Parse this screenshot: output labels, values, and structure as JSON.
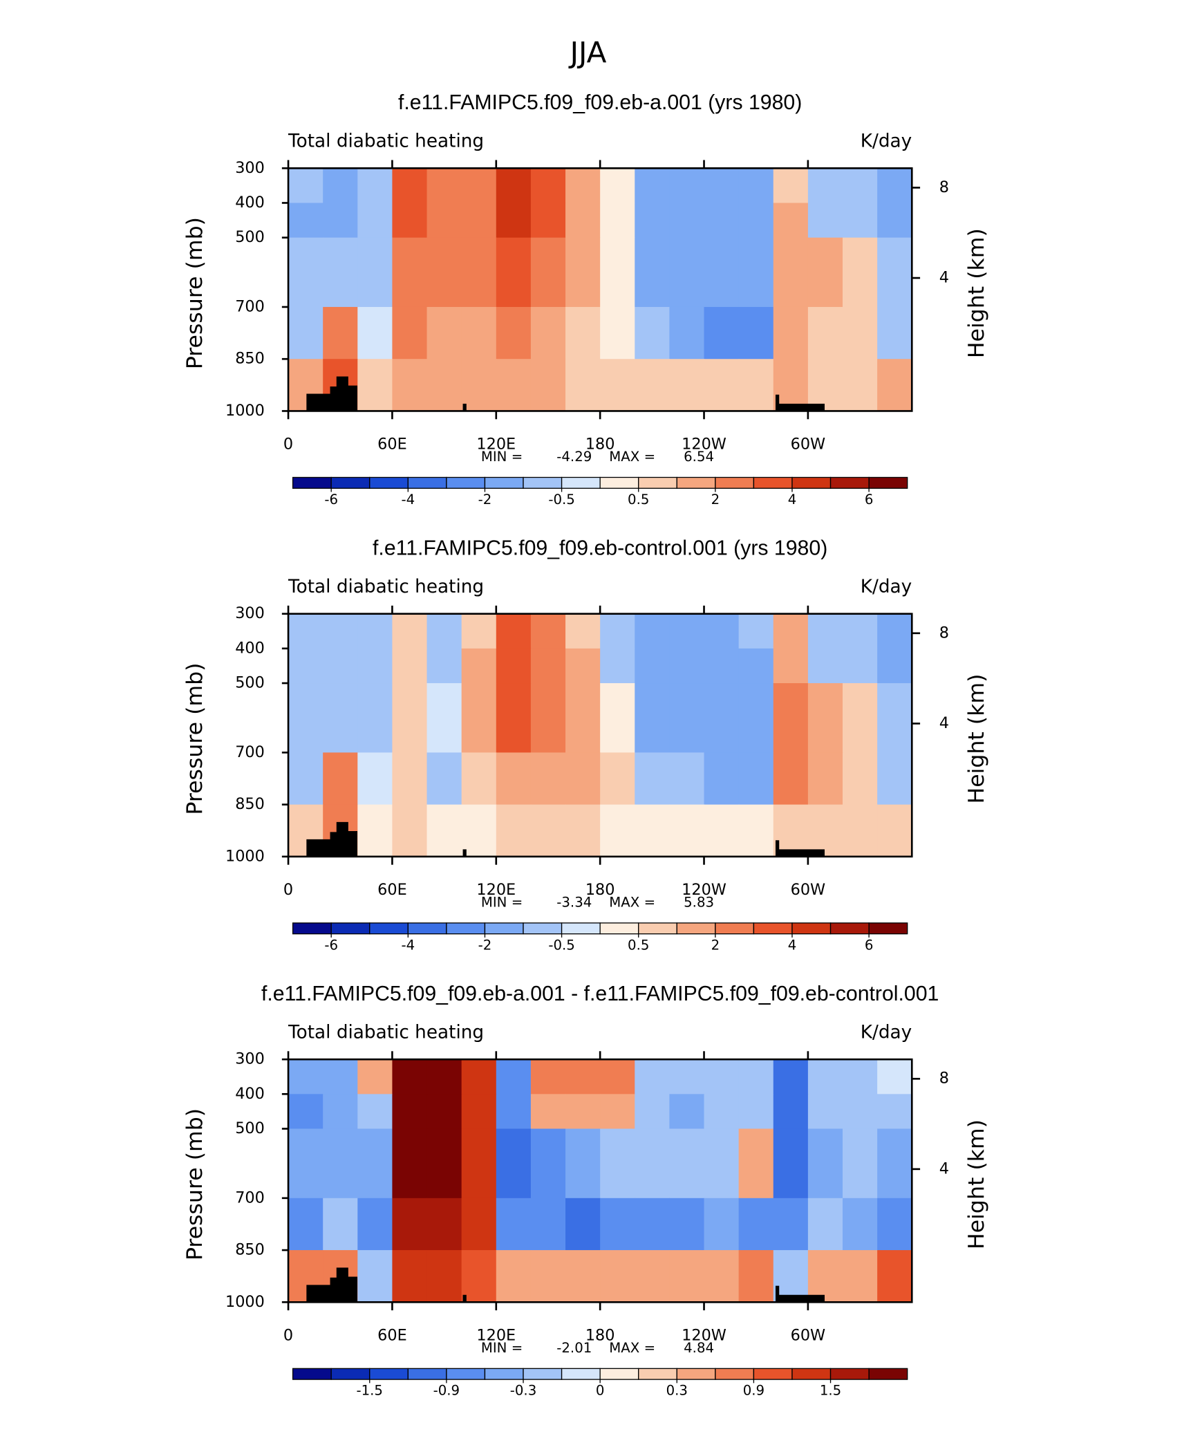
{
  "title": "JJA",
  "chart_data": [
    {
      "type": "heatmap",
      "title": "f.e11.FAMIPC5.f09_f09.eb-a.001 (yrs 1980)",
      "subtitle": "Total diabatic heating",
      "units": "K/day",
      "ylabel": "Pressure (mb)",
      "y2label": "Height (km)",
      "x_edges": [
        0,
        20,
        40,
        60,
        80,
        100,
        120,
        140,
        160,
        180,
        200,
        220,
        240,
        260,
        280,
        300,
        320,
        340,
        360
      ],
      "y_edges": [
        300,
        400,
        500,
        700,
        850,
        1000
      ],
      "values": [
        [
          -1,
          -1.5,
          -0.7,
          3,
          2.5,
          2,
          4,
          3,
          1,
          0.3,
          -1.5,
          -1.5,
          -1.5,
          -1.2,
          0.5,
          -0.7,
          -0.7,
          -1.5
        ],
        [
          -1.5,
          -1.5,
          -0.7,
          3.5,
          2.5,
          2.5,
          4.5,
          3,
          1,
          0.3,
          -1.5,
          -1.5,
          -1.5,
          -1.5,
          1,
          -0.7,
          -1,
          -1.5
        ],
        [
          -1,
          -1,
          -0.7,
          2.5,
          2,
          2,
          3,
          2,
          1,
          0.3,
          -1.5,
          -1.5,
          -1.5,
          -1.5,
          1.5,
          1,
          0.5,
          -1
        ],
        [
          -1,
          2,
          -0.5,
          2,
          1.5,
          1.5,
          2,
          1.5,
          0.7,
          0.3,
          -0.7,
          -2,
          -2.5,
          -2.5,
          1.5,
          0.7,
          0.7,
          -1
        ],
        [
          1,
          3,
          0.7,
          1,
          1,
          1,
          1,
          1,
          0.7,
          0.7,
          0.7,
          0.7,
          0.7,
          0.7,
          1,
          0.7,
          0.7,
          1.5
        ]
      ],
      "xlim": [
        0,
        360
      ],
      "ylim": [
        300,
        1000
      ],
      "y_inverted": true,
      "xticks": [
        0,
        {
          "value": 60,
          "label": "60E"
        },
        {
          "value": 120,
          "label": "120E"
        },
        180,
        {
          "value": 240,
          "label": "120W"
        },
        {
          "value": 300,
          "label": "60W"
        }
      ],
      "yticks": [
        300,
        400,
        500,
        700,
        850,
        1000
      ],
      "y2_scale": "standard-atmosphere",
      "y2ticks": [
        4,
        8
      ],
      "min_label": "MIN =",
      "min": -4.29,
      "max_label": "MAX =",
      "max": 6.54,
      "levels": [
        -6,
        -5,
        -4,
        -3,
        -2,
        -1,
        -0.5,
        0,
        0.5,
        1,
        2,
        3,
        4,
        5,
        6
      ],
      "colors": [
        "#050a8c",
        "#0b2bb4",
        "#1a4bd4",
        "#3a6fe4",
        "#5a8ef0",
        "#7ba9f4",
        "#a3c4f7",
        "#d5e6fb",
        "#fdeedf",
        "#f9cdb0",
        "#f5a67f",
        "#f07d52",
        "#e8542b",
        "#cf3512",
        "#a8190a",
        "#7a0403"
      ],
      "colorbar_ticks": [
        -6,
        -4,
        -2,
        -0.5,
        0.5,
        2,
        4,
        6
      ]
    },
    {
      "type": "heatmap",
      "title": "f.e11.FAMIPC5.f09_f09.eb-control.001 (yrs 1980)",
      "subtitle": "Total diabatic heating",
      "units": "K/day",
      "ylabel": "Pressure (mb)",
      "y2label": "Height (km)",
      "x_edges": [
        0,
        20,
        40,
        60,
        80,
        100,
        120,
        140,
        160,
        180,
        200,
        220,
        240,
        260,
        280,
        300,
        320,
        340,
        360
      ],
      "y_edges": [
        300,
        400,
        500,
        700,
        850,
        1000
      ],
      "values": [
        [
          -0.7,
          -1,
          -0.7,
          0.7,
          -0.7,
          0.7,
          3,
          2,
          0.7,
          -0.7,
          -1.5,
          -1.5,
          -1.5,
          -1,
          1.5,
          -0.7,
          -0.7,
          -1.5
        ],
        [
          -1,
          -1,
          -0.7,
          0.7,
          -0.7,
          1,
          3.5,
          2.5,
          1,
          -0.7,
          -1.5,
          -1.5,
          -1.5,
          -1.5,
          1.5,
          -0.7,
          -1,
          -1.5
        ],
        [
          -1,
          -1,
          -0.7,
          0.7,
          -0.3,
          1.5,
          3,
          2,
          1.5,
          0.3,
          -1.5,
          -1.5,
          -1.5,
          -1.5,
          2,
          1,
          0.7,
          -1
        ],
        [
          -1,
          2,
          -0.5,
          0.7,
          -0.7,
          0.7,
          1.5,
          1.5,
          1.5,
          0.7,
          -0.7,
          -1,
          -1.5,
          -1.5,
          2,
          1,
          0.7,
          -1
        ],
        [
          0.7,
          2,
          0.3,
          0.7,
          0.3,
          0.3,
          0.7,
          0.7,
          0.7,
          0.3,
          0.3,
          0.3,
          0.3,
          0.3,
          0.7,
          0.7,
          0.7,
          0.7
        ]
      ],
      "xlim": [
        0,
        360
      ],
      "ylim": [
        300,
        1000
      ],
      "y_inverted": true,
      "xticks": [
        0,
        {
          "value": 60,
          "label": "60E"
        },
        {
          "value": 120,
          "label": "120E"
        },
        180,
        {
          "value": 240,
          "label": "120W"
        },
        {
          "value": 300,
          "label": "60W"
        }
      ],
      "yticks": [
        300,
        400,
        500,
        700,
        850,
        1000
      ],
      "y2_scale": "standard-atmosphere",
      "y2ticks": [
        4,
        8
      ],
      "min_label": "MIN =",
      "min": -3.34,
      "max_label": "MAX =",
      "max": 5.83,
      "levels": [
        -6,
        -5,
        -4,
        -3,
        -2,
        -1,
        -0.5,
        0,
        0.5,
        1,
        2,
        3,
        4,
        5,
        6
      ],
      "colors": [
        "#050a8c",
        "#0b2bb4",
        "#1a4bd4",
        "#3a6fe4",
        "#5a8ef0",
        "#7ba9f4",
        "#a3c4f7",
        "#d5e6fb",
        "#fdeedf",
        "#f9cdb0",
        "#f5a67f",
        "#f07d52",
        "#e8542b",
        "#cf3512",
        "#a8190a",
        "#7a0403"
      ],
      "colorbar_ticks": [
        -6,
        -4,
        -2,
        -0.5,
        0.5,
        2,
        4,
        6
      ]
    },
    {
      "type": "heatmap",
      "title": "f.e11.FAMIPC5.f09_f09.eb-a.001 - f.e11.FAMIPC5.f09_f09.eb-control.001",
      "subtitle": "Total diabatic heating",
      "units": "K/day",
      "ylabel": "Pressure (mb)",
      "y2label": "Height (km)",
      "x_edges": [
        0,
        20,
        40,
        60,
        80,
        100,
        120,
        140,
        160,
        180,
        200,
        220,
        240,
        260,
        280,
        300,
        320,
        340,
        360
      ],
      "y_edges": [
        300,
        400,
        500,
        700,
        850,
        1000
      ],
      "values": [
        [
          -0.6,
          -0.6,
          0.3,
          2,
          2,
          1.2,
          -0.9,
          0.6,
          0.6,
          0.6,
          -0.3,
          -0.3,
          -0.3,
          -0.3,
          -1.2,
          -0.3,
          -0.3,
          -0.1
        ],
        [
          -0.9,
          -0.6,
          -0.3,
          2,
          2,
          1.2,
          -0.9,
          0.3,
          0.3,
          0.3,
          -0.3,
          -0.6,
          -0.3,
          -0.3,
          -1.2,
          -0.3,
          -0.3,
          -0.3
        ],
        [
          -0.6,
          -0.6,
          -0.6,
          2,
          1.8,
          1.2,
          -1.2,
          -0.9,
          -0.6,
          -0.3,
          -0.3,
          -0.3,
          -0.3,
          0.3,
          -1.2,
          -0.6,
          -0.3,
          -0.6
        ],
        [
          -0.9,
          -0.3,
          -0.9,
          1.5,
          1.5,
          1.2,
          -0.9,
          -0.9,
          -1.2,
          -0.9,
          -0.9,
          -0.9,
          -0.6,
          -0.9,
          -0.9,
          -0.3,
          -0.6,
          -0.9
        ],
        [
          0.6,
          0.6,
          -0.3,
          1.2,
          1.2,
          0.9,
          0.3,
          0.3,
          0.3,
          0.3,
          0.3,
          0.3,
          0.3,
          0.6,
          -0.3,
          0.3,
          0.3,
          0.9
        ]
      ],
      "xlim": [
        0,
        360
      ],
      "ylim": [
        300,
        1000
      ],
      "y_inverted": true,
      "xticks": [
        0,
        {
          "value": 60,
          "label": "60E"
        },
        {
          "value": 120,
          "label": "120E"
        },
        180,
        {
          "value": 240,
          "label": "120W"
        },
        {
          "value": 300,
          "label": "60W"
        }
      ],
      "yticks": [
        300,
        400,
        500,
        700,
        850,
        1000
      ],
      "y2_scale": "standard-atmosphere",
      "y2ticks": [
        4,
        8
      ],
      "min_label": "MIN =",
      "min": -2.01,
      "max_label": "MAX =",
      "max": 4.84,
      "levels": [
        -1.8,
        -1.5,
        -1.2,
        -0.9,
        -0.6,
        -0.3,
        -0.1,
        0,
        0.1,
        0.3,
        0.6,
        0.9,
        1.2,
        1.5,
        1.8
      ],
      "colors": [
        "#050a8c",
        "#0b2bb4",
        "#1a4bd4",
        "#3a6fe4",
        "#5a8ef0",
        "#7ba9f4",
        "#a3c4f7",
        "#d5e6fb",
        "#fdeedf",
        "#f9cdb0",
        "#f5a67f",
        "#f07d52",
        "#e8542b",
        "#cf3512",
        "#a8190a",
        "#7a0403"
      ],
      "colorbar_ticks": [
        -1.5,
        -0.9,
        -0.3,
        0,
        0.3,
        0.9,
        1.5
      ]
    }
  ]
}
